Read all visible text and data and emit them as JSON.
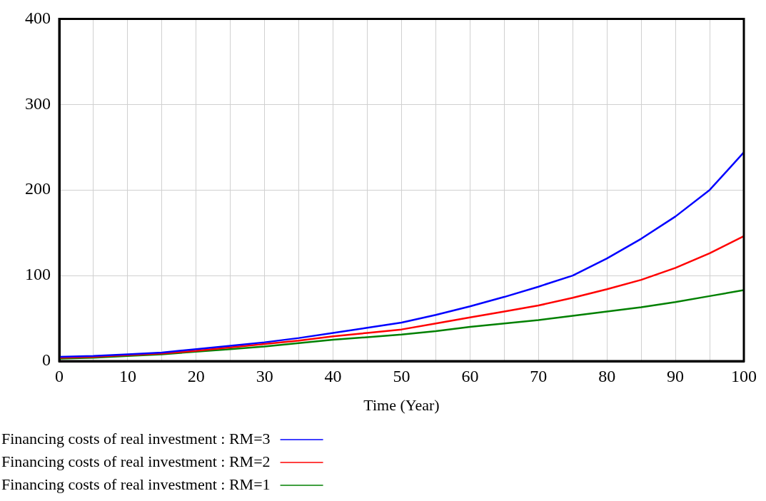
{
  "chart_data": {
    "type": "line",
    "xlabel": "Time (Year)",
    "x": [
      0,
      5,
      10,
      15,
      20,
      25,
      30,
      35,
      40,
      45,
      50,
      55,
      60,
      65,
      70,
      75,
      80,
      85,
      90,
      95,
      100
    ],
    "series": [
      {
        "name": "Financing costs of real investment : RM=3",
        "color": "#0000ff",
        "values": [
          5,
          6,
          8,
          10,
          14,
          18,
          22,
          27,
          33,
          39,
          45,
          54,
          64,
          75,
          87,
          100,
          120,
          143,
          169,
          200,
          244
        ]
      },
      {
        "name": "Financing costs of real investment : RM=2",
        "color": "#ff0000",
        "values": [
          4,
          5,
          7,
          9,
          12,
          16,
          20,
          24,
          29,
          33,
          37,
          44,
          51,
          58,
          65,
          74,
          84,
          95,
          109,
          126,
          146
        ]
      },
      {
        "name": "Financing costs of real investment : RM=1",
        "color": "#008000",
        "values": [
          3,
          4,
          6,
          8,
          11,
          14,
          17,
          21,
          25,
          28,
          31,
          35,
          40,
          44,
          48,
          53,
          58,
          63,
          69,
          76,
          83
        ]
      }
    ],
    "xlim": [
      0,
      100
    ],
    "xticks": [
      0,
      {
        "value": 5,
        "label": null
      },
      10,
      {
        "value": 15,
        "label": null
      },
      20,
      {
        "value": 25,
        "label": null
      },
      30,
      {
        "value": 35,
        "label": null
      },
      40,
      {
        "value": 45,
        "label": null
      },
      50,
      {
        "value": 55,
        "label": null
      },
      60,
      {
        "value": 65,
        "label": null
      },
      70,
      {
        "value": 75,
        "label": null
      },
      80,
      {
        "value": 85,
        "label": null
      },
      90,
      {
        "value": 95,
        "label": null
      },
      100
    ],
    "ylim": [
      0,
      400
    ],
    "yticks": [
      0,
      100,
      200,
      300,
      400
    ],
    "grid": true,
    "legend": "bottom",
    "marker": "none",
    "line_style": "solid"
  }
}
